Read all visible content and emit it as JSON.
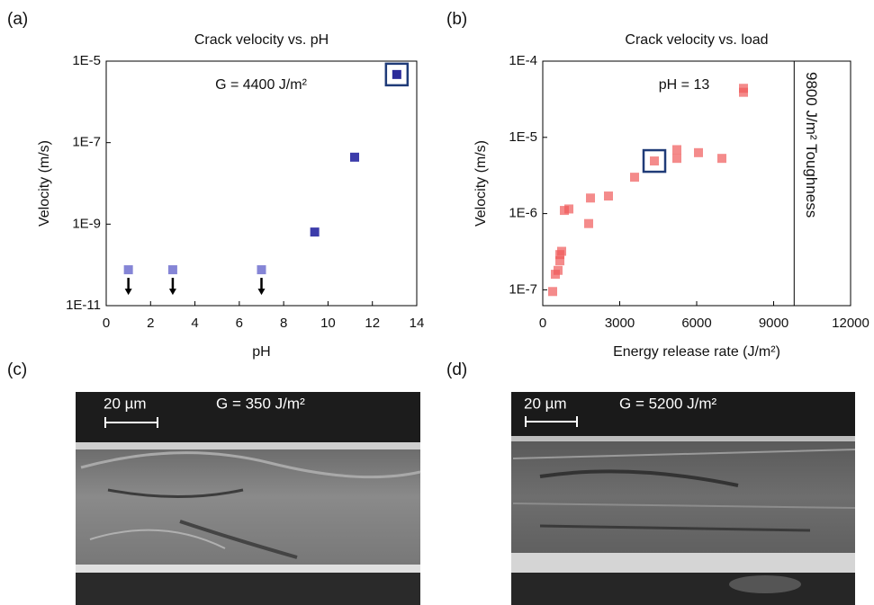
{
  "chart_data": [
    {
      "type": "scatter",
      "panel_label": "(a)",
      "title": "Crack velocity vs. pH",
      "x_label": "pH",
      "y_label": "Velocity (m/s)",
      "annotation": "G = 4400 J/m²",
      "x": [
        1,
        3,
        7,
        9.4,
        11.2,
        13.1
      ],
      "values": [
        7.6e-11,
        7.6e-11,
        7.6e-11,
        6.4e-10,
        4.4e-08,
        4.7e-06
      ],
      "colors": [
        "#8585d6",
        "#8585d6",
        "#8585d6",
        "#3c3caa",
        "#3c3caa",
        "#2a2a9a"
      ],
      "upper_limit": [
        true,
        true,
        true,
        false,
        false,
        false
      ],
      "highlight_index": 5,
      "xlim": [
        0,
        14
      ],
      "xticks": [
        0,
        2,
        4,
        6,
        8,
        10,
        12,
        14
      ],
      "log_y": true,
      "ylim": [
        1e-11,
        1e-05
      ],
      "yticks": [
        {
          "value": 1e-11,
          "label": "1E-11"
        },
        {
          "value": 1e-09,
          "label": "1E-9"
        },
        {
          "value": 1e-07,
          "label": "1E-7"
        },
        {
          "value": 1e-05,
          "label": "1E-5"
        }
      ]
    },
    {
      "type": "scatter",
      "panel_label": "(b)",
      "title": "Crack velocity vs. load",
      "x_label": "Energy release rate (J/m²)",
      "y_label": "Velocity (m/s)",
      "annotation": "pH = 13",
      "x": [
        386,
        491,
        596,
        667,
        667,
        737,
        842,
        1018,
        1789,
        1860,
        2561,
        3579,
        4351,
        5228,
        5228,
        6070,
        6982,
        7825,
        7825
      ],
      "values": [
        9.5e-08,
        1.6e-07,
        1.8e-07,
        2.9e-07,
        2.4e-07,
        3.2e-07,
        1.1e-06,
        1.15e-06,
        7.4e-07,
        1.6e-06,
        1.7e-06,
        3e-06,
        4.9e-06,
        6.9e-06,
        5.3e-06,
        6.3e-06,
        5.3e-06,
        4.4e-05,
        3.9e-05
      ],
      "color": "#f05a5a",
      "highlight_index": 12,
      "reference_line": {
        "x": 9800,
        "label": "9800 J/m² Toughness"
      },
      "xlim": [
        0,
        12000
      ],
      "xticks": [
        0,
        3000,
        6000,
        9000,
        12000
      ],
      "log_y": true,
      "ylim": [
        6.2e-08,
        0.0001
      ],
      "yticks": [
        {
          "value": 1e-07,
          "label": "1E-7"
        },
        {
          "value": 1e-06,
          "label": "1E-6"
        },
        {
          "value": 1e-05,
          "label": "1E-5"
        },
        {
          "value": 0.0001,
          "label": "1E-4"
        }
      ]
    }
  ],
  "images": [
    {
      "panel_label": "(c)",
      "scale_bar": "20 µm",
      "annotation": "G = 350 J/m²"
    },
    {
      "panel_label": "(d)",
      "scale_bar": "20 µm",
      "annotation": "G = 5200 J/m²"
    }
  ]
}
